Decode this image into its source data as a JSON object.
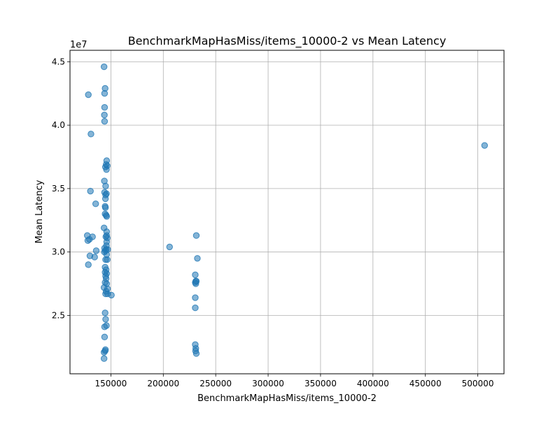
{
  "chart_data": {
    "type": "scatter",
    "title": "BenchmarkMapHasMiss/items_10000-2 vs Mean Latency",
    "xlabel": "BenchmarkMapHasMiss/items_10000-2",
    "ylabel": "Mean Latency",
    "y_offset_label": "1e7",
    "xlim": [
      111000,
      525000
    ],
    "ylim": [
      20400000,
      45900000
    ],
    "x_ticks": [
      {
        "value": 150000,
        "label": "150000"
      },
      {
        "value": 200000,
        "label": "200000"
      },
      {
        "value": 250000,
        "label": "250000"
      },
      {
        "value": 300000,
        "label": "300000"
      },
      {
        "value": 350000,
        "label": "350000"
      },
      {
        "value": 400000,
        "label": "400000"
      },
      {
        "value": 450000,
        "label": "450000"
      },
      {
        "value": 500000,
        "label": "500000"
      }
    ],
    "y_ticks": [
      {
        "value": 25000000,
        "label": "2.5"
      },
      {
        "value": 30000000,
        "label": "3.0"
      },
      {
        "value": 35000000,
        "label": "3.5"
      },
      {
        "value": 40000000,
        "label": "4.0"
      },
      {
        "value": 45000000,
        "label": "4.5"
      }
    ],
    "grid": true,
    "point_color": "#1f77b4",
    "point_opacity": 0.55,
    "series": [
      {
        "points": [
          [
            143500,
            44600000
          ],
          [
            144500,
            42900000
          ],
          [
            144000,
            42500000
          ],
          [
            128500,
            42400000
          ],
          [
            144000,
            41400000
          ],
          [
            143800,
            40800000
          ],
          [
            144000,
            40300000
          ],
          [
            131000,
            39300000
          ],
          [
            146000,
            37200000
          ],
          [
            145500,
            36900000
          ],
          [
            146500,
            36800000
          ],
          [
            144800,
            36700000
          ],
          [
            145800,
            36500000
          ],
          [
            143800,
            35600000
          ],
          [
            145000,
            35200000
          ],
          [
            130500,
            34800000
          ],
          [
            144000,
            34700000
          ],
          [
            145800,
            34600000
          ],
          [
            145000,
            34500000
          ],
          [
            144800,
            34200000
          ],
          [
            135500,
            33800000
          ],
          [
            144500,
            33600000
          ],
          [
            144800,
            33500000
          ],
          [
            144500,
            33000000
          ],
          [
            145500,
            32900000
          ],
          [
            146000,
            32800000
          ],
          [
            143500,
            31900000
          ],
          [
            146000,
            31600000
          ],
          [
            127500,
            31300000
          ],
          [
            146000,
            31300000
          ],
          [
            145200,
            31200000
          ],
          [
            132500,
            31200000
          ],
          [
            146500,
            31100000
          ],
          [
            129500,
            31000000
          ],
          [
            128000,
            30900000
          ],
          [
            146000,
            30800000
          ],
          [
            145800,
            30500000
          ],
          [
            144000,
            30300000
          ],
          [
            145500,
            30200000
          ],
          [
            147000,
            30200000
          ],
          [
            136000,
            30100000
          ],
          [
            144800,
            30100000
          ],
          [
            143800,
            30000000
          ],
          [
            146000,
            29800000
          ],
          [
            130000,
            29700000
          ],
          [
            134500,
            29600000
          ],
          [
            146500,
            29400000
          ],
          [
            145000,
            29400000
          ],
          [
            128500,
            29000000
          ],
          [
            144500,
            28800000
          ],
          [
            145500,
            28600000
          ],
          [
            144500,
            28400000
          ],
          [
            146000,
            28300000
          ],
          [
            145000,
            28100000
          ],
          [
            145500,
            27900000
          ],
          [
            144500,
            27600000
          ],
          [
            146000,
            27500000
          ],
          [
            143500,
            27200000
          ],
          [
            146800,
            27100000
          ],
          [
            145500,
            26900000
          ],
          [
            150500,
            26600000
          ],
          [
            145000,
            26700000
          ],
          [
            146800,
            26700000
          ],
          [
            144500,
            25200000
          ],
          [
            145000,
            24700000
          ],
          [
            145800,
            24200000
          ],
          [
            144000,
            24100000
          ],
          [
            144000,
            23300000
          ],
          [
            144800,
            22300000
          ],
          [
            144500,
            22200000
          ],
          [
            143500,
            22100000
          ],
          [
            143500,
            21600000
          ],
          [
            206000,
            30400000
          ],
          [
            231500,
            31300000
          ],
          [
            232500,
            29500000
          ],
          [
            230500,
            28200000
          ],
          [
            231000,
            27700000
          ],
          [
            231500,
            27700000
          ],
          [
            230500,
            27600000
          ],
          [
            231000,
            27500000
          ],
          [
            230500,
            26400000
          ],
          [
            230500,
            25600000
          ],
          [
            230500,
            22700000
          ],
          [
            231000,
            22400000
          ],
          [
            230800,
            22200000
          ],
          [
            231500,
            22000000
          ],
          [
            506500,
            38400000
          ]
        ]
      }
    ]
  }
}
